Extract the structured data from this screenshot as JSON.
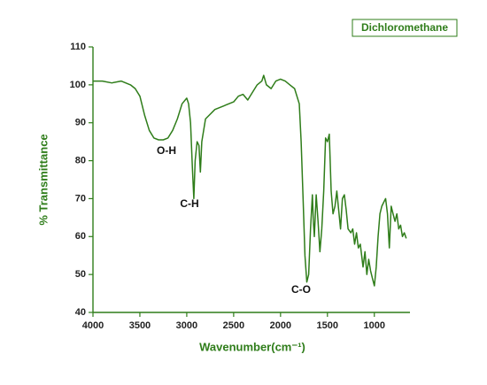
{
  "chart_data": {
    "type": "line",
    "x_label": "Wavenumber(cm⁻¹)",
    "y_label": "% Transmittance",
    "x": [
      4000,
      3900,
      3800,
      3700,
      3600,
      3550,
      3500,
      3450,
      3400,
      3350,
      3300,
      3250,
      3200,
      3150,
      3100,
      3050,
      3000,
      2980,
      2960,
      2940,
      2925,
      2910,
      2890,
      2870,
      2855,
      2840,
      2800,
      2700,
      2600,
      2500,
      2450,
      2400,
      2350,
      2300,
      2250,
      2200,
      2180,
      2150,
      2100,
      2050,
      2000,
      1950,
      1900,
      1850,
      1800,
      1780,
      1760,
      1740,
      1720,
      1700,
      1680,
      1660,
      1650,
      1640,
      1620,
      1600,
      1580,
      1560,
      1540,
      1520,
      1500,
      1480,
      1460,
      1440,
      1420,
      1400,
      1380,
      1360,
      1340,
      1320,
      1300,
      1280,
      1250,
      1230,
      1210,
      1190,
      1170,
      1150,
      1120,
      1100,
      1080,
      1060,
      1040,
      1020,
      1000,
      980,
      960,
      940,
      920,
      900,
      880,
      860,
      840,
      820,
      800,
      780,
      760,
      740,
      720,
      700,
      680,
      660
    ],
    "series": [
      {
        "name": "Dichloromethane",
        "color": "#2f7d1a",
        "values": [
          101,
          101,
          100.5,
          101,
          100,
          99,
          97,
          92,
          88,
          86,
          85.5,
          85.5,
          86,
          88,
          91,
          95,
          96.5,
          95,
          90,
          78,
          70,
          80,
          85,
          84,
          77,
          85,
          91,
          93.5,
          94.5,
          95.5,
          97,
          97.5,
          96,
          98,
          100,
          101,
          102.5,
          100,
          99,
          101,
          101.5,
          101,
          100,
          99,
          95,
          85,
          70,
          55,
          48,
          50,
          62,
          71,
          64,
          60,
          71,
          64,
          56,
          62,
          72,
          86,
          85,
          87,
          72,
          66,
          68,
          72,
          67,
          62,
          70,
          71,
          67,
          62,
          61,
          62,
          58,
          61,
          57,
          58,
          52,
          56,
          50,
          54,
          51,
          49,
          47,
          52,
          60,
          66,
          68,
          69,
          70,
          66,
          57,
          68,
          66,
          64,
          66,
          62,
          63,
          60,
          61,
          59.5
        ]
      }
    ],
    "annotations": [
      "O-H",
      "C-H",
      "C-O"
    ],
    "xlim": [
      4000,
      620
    ],
    "xticks": [
      4000,
      3500,
      3000,
      2500,
      2000,
      1500,
      1000
    ],
    "ylim": [
      40,
      110
    ],
    "yticks": [
      40,
      50,
      60,
      70,
      80,
      90,
      100,
      110
    ]
  }
}
